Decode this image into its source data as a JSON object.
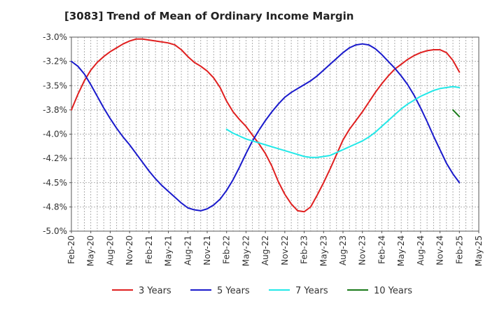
{
  "chart_data": {
    "type": "line",
    "title": "[3083]  Trend of Mean of Ordinary Income Margin",
    "xlabel": "",
    "ylabel": "",
    "ylim": [
      -5.0,
      -3.0
    ],
    "yticks": [
      -3.0,
      -3.25,
      -3.5,
      -3.75,
      -4.0,
      -4.25,
      -4.5,
      -4.75,
      -5.0
    ],
    "ytick_labels": [
      "-3.0%",
      "-3.2%",
      "-3.5%",
      "-3.8%",
      "-4.0%",
      "-4.2%",
      "-4.5%",
      "-4.8%",
      "-5.0%"
    ],
    "xtick_labels": [
      "Feb-20",
      "May-20",
      "Aug-20",
      "Nov-20",
      "Feb-21",
      "May-21",
      "Aug-21",
      "Nov-21",
      "Feb-22",
      "May-22",
      "Aug-22",
      "Nov-22",
      "Feb-23",
      "May-23",
      "Aug-23",
      "Nov-23",
      "Feb-24",
      "May-24",
      "Aug-24",
      "Nov-24",
      "Feb-25",
      "May-25"
    ],
    "grid": true,
    "legend_position": "bottom",
    "series": [
      {
        "name": "3 Years",
        "color": "#e02020",
        "points": [
          [
            "Feb-20",
            -3.75
          ],
          [
            "Mar-20",
            -3.59
          ],
          [
            "Apr-20",
            -3.45
          ],
          [
            "May-20",
            -3.34
          ],
          [
            "Jun-20",
            -3.26
          ],
          [
            "Jul-20",
            -3.2
          ],
          [
            "Aug-20",
            -3.15
          ],
          [
            "Sep-20",
            -3.11
          ],
          [
            "Oct-20",
            -3.07
          ],
          [
            "Nov-20",
            -3.04
          ],
          [
            "Dec-20",
            -3.02
          ],
          [
            "Jan-21",
            -3.02
          ],
          [
            "Feb-21",
            -3.03
          ],
          [
            "Mar-21",
            -3.04
          ],
          [
            "Apr-21",
            -3.05
          ],
          [
            "May-21",
            -3.06
          ],
          [
            "Jun-21",
            -3.08
          ],
          [
            "Jul-21",
            -3.13
          ],
          [
            "Aug-21",
            -3.2
          ],
          [
            "Sep-21",
            -3.26
          ],
          [
            "Oct-21",
            -3.3
          ],
          [
            "Nov-21",
            -3.35
          ],
          [
            "Dec-21",
            -3.42
          ],
          [
            "Jan-22",
            -3.52
          ],
          [
            "Feb-22",
            -3.66
          ],
          [
            "Mar-22",
            -3.77
          ],
          [
            "Apr-22",
            -3.85
          ],
          [
            "May-22",
            -3.92
          ],
          [
            "Jun-22",
            -4.01
          ],
          [
            "Jul-22",
            -4.1
          ],
          [
            "Aug-22",
            -4.2
          ],
          [
            "Sep-22",
            -4.33
          ],
          [
            "Oct-22",
            -4.49
          ],
          [
            "Nov-22",
            -4.62
          ],
          [
            "Dec-22",
            -4.72
          ],
          [
            "Jan-23",
            -4.79
          ],
          [
            "Feb-23",
            -4.8
          ],
          [
            "Mar-23",
            -4.75
          ],
          [
            "Apr-23",
            -4.63
          ],
          [
            "May-23",
            -4.5
          ],
          [
            "Jun-23",
            -4.36
          ],
          [
            "Jul-23",
            -4.21
          ],
          [
            "Aug-23",
            -4.06
          ],
          [
            "Sep-23",
            -3.95
          ],
          [
            "Oct-23",
            -3.86
          ],
          [
            "Nov-23",
            -3.77
          ],
          [
            "Dec-23",
            -3.67
          ],
          [
            "Jan-24",
            -3.57
          ],
          [
            "Feb-24",
            -3.48
          ],
          [
            "Mar-24",
            -3.4
          ],
          [
            "Apr-24",
            -3.33
          ],
          [
            "May-24",
            -3.28
          ],
          [
            "Jun-24",
            -3.23
          ],
          [
            "Jul-24",
            -3.19
          ],
          [
            "Aug-24",
            -3.16
          ],
          [
            "Sep-24",
            -3.14
          ],
          [
            "Oct-24",
            -3.13
          ],
          [
            "Nov-24",
            -3.13
          ],
          [
            "Dec-24",
            -3.16
          ],
          [
            "Jan-25",
            -3.24
          ],
          [
            "Feb-25",
            -3.36
          ]
        ]
      },
      {
        "name": "5 Years",
        "color": "#1a1acc",
        "points": [
          [
            "Feb-20",
            -3.25
          ],
          [
            "Mar-20",
            -3.3
          ],
          [
            "Apr-20",
            -3.38
          ],
          [
            "May-20",
            -3.49
          ],
          [
            "Jun-20",
            -3.61
          ],
          [
            "Jul-20",
            -3.73
          ],
          [
            "Aug-20",
            -3.84
          ],
          [
            "Sep-20",
            -3.94
          ],
          [
            "Oct-20",
            -4.03
          ],
          [
            "Nov-20",
            -4.11
          ],
          [
            "Dec-20",
            -4.2
          ],
          [
            "Jan-21",
            -4.29
          ],
          [
            "Feb-21",
            -4.38
          ],
          [
            "Mar-21",
            -4.46
          ],
          [
            "Apr-21",
            -4.53
          ],
          [
            "May-21",
            -4.59
          ],
          [
            "Jun-21",
            -4.65
          ],
          [
            "Jul-21",
            -4.71
          ],
          [
            "Aug-21",
            -4.76
          ],
          [
            "Sep-21",
            -4.78
          ],
          [
            "Oct-21",
            -4.79
          ],
          [
            "Nov-21",
            -4.77
          ],
          [
            "Dec-21",
            -4.73
          ],
          [
            "Jan-22",
            -4.67
          ],
          [
            "Feb-22",
            -4.58
          ],
          [
            "Mar-22",
            -4.47
          ],
          [
            "Apr-22",
            -4.34
          ],
          [
            "May-22",
            -4.2
          ],
          [
            "Jun-22",
            -4.07
          ],
          [
            "Jul-22",
            -3.96
          ],
          [
            "Aug-22",
            -3.86
          ],
          [
            "Sep-22",
            -3.77
          ],
          [
            "Oct-22",
            -3.69
          ],
          [
            "Nov-22",
            -3.62
          ],
          [
            "Dec-22",
            -3.57
          ],
          [
            "Jan-23",
            -3.53
          ],
          [
            "Feb-23",
            -3.49
          ],
          [
            "Mar-23",
            -3.45
          ],
          [
            "Apr-23",
            -3.4
          ],
          [
            "May-23",
            -3.34
          ],
          [
            "Jun-23",
            -3.28
          ],
          [
            "Jul-23",
            -3.22
          ],
          [
            "Aug-23",
            -3.16
          ],
          [
            "Sep-23",
            -3.11
          ],
          [
            "Oct-23",
            -3.08
          ],
          [
            "Nov-23",
            -3.07
          ],
          [
            "Dec-23",
            -3.08
          ],
          [
            "Jan-24",
            -3.12
          ],
          [
            "Feb-24",
            -3.18
          ],
          [
            "Mar-24",
            -3.25
          ],
          [
            "Apr-24",
            -3.32
          ],
          [
            "May-24",
            -3.4
          ],
          [
            "Jun-24",
            -3.49
          ],
          [
            "Jul-24",
            -3.6
          ],
          [
            "Aug-24",
            -3.73
          ],
          [
            "Sep-24",
            -3.87
          ],
          [
            "Oct-24",
            -4.02
          ],
          [
            "Nov-24",
            -4.16
          ],
          [
            "Dec-24",
            -4.3
          ],
          [
            "Jan-25",
            -4.41
          ],
          [
            "Feb-25",
            -4.5
          ]
        ]
      },
      {
        "name": "7 Years",
        "color": "#22e8e8",
        "points": [
          [
            "Feb-22",
            -3.95
          ],
          [
            "Mar-22",
            -3.99
          ],
          [
            "Apr-22",
            -4.02
          ],
          [
            "May-22",
            -4.05
          ],
          [
            "Jun-22",
            -4.07
          ],
          [
            "Jul-22",
            -4.09
          ],
          [
            "Aug-22",
            -4.11
          ],
          [
            "Sep-22",
            -4.13
          ],
          [
            "Oct-22",
            -4.15
          ],
          [
            "Nov-22",
            -4.17
          ],
          [
            "Dec-22",
            -4.19
          ],
          [
            "Jan-23",
            -4.21
          ],
          [
            "Feb-23",
            -4.23
          ],
          [
            "Mar-23",
            -4.24
          ],
          [
            "Apr-23",
            -4.24
          ],
          [
            "May-23",
            -4.23
          ],
          [
            "Jun-23",
            -4.22
          ],
          [
            "Jul-23",
            -4.19
          ],
          [
            "Aug-23",
            -4.16
          ],
          [
            "Sep-23",
            -4.13
          ],
          [
            "Oct-23",
            -4.1
          ],
          [
            "Nov-23",
            -4.07
          ],
          [
            "Dec-23",
            -4.03
          ],
          [
            "Jan-24",
            -3.98
          ],
          [
            "Feb-24",
            -3.92
          ],
          [
            "Mar-24",
            -3.86
          ],
          [
            "Apr-24",
            -3.8
          ],
          [
            "May-24",
            -3.74
          ],
          [
            "Jun-24",
            -3.69
          ],
          [
            "Jul-24",
            -3.65
          ],
          [
            "Aug-24",
            -3.61
          ],
          [
            "Sep-24",
            -3.58
          ],
          [
            "Oct-24",
            -3.55
          ],
          [
            "Nov-24",
            -3.53
          ],
          [
            "Dec-24",
            -3.52
          ],
          [
            "Jan-25",
            -3.51
          ],
          [
            "Feb-25",
            -3.52
          ]
        ]
      },
      {
        "name": "10 Years",
        "color": "#1a7a1a",
        "points": [
          [
            "Jan-25",
            -3.75
          ],
          [
            "Feb-25",
            -3.82
          ]
        ]
      }
    ]
  }
}
